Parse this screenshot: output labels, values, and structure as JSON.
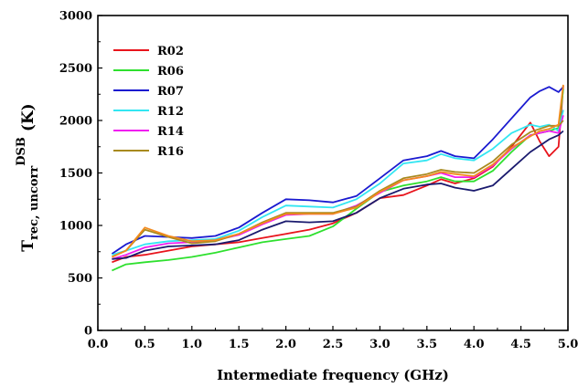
{
  "chart_data": {
    "type": "line",
    "title": "",
    "xlabel": "Intermediate frequency (GHz)",
    "ylabel": {
      "main": "T",
      "sub": "rec, uncorr",
      "sup": "DSB",
      "unit": " (K)"
    },
    "xlim": [
      0.0,
      5.0
    ],
    "ylim": [
      0,
      3000
    ],
    "xticks": [
      "0.0",
      "0.5",
      "1.0",
      "1.5",
      "2.0",
      "2.5",
      "3.0",
      "3.5",
      "4.0",
      "4.5",
      "5.0"
    ],
    "yticks": [
      "0",
      "500",
      "1000",
      "1500",
      "2000",
      "2500",
      "3000"
    ],
    "grid": false,
    "legend_position": "top-left",
    "x": [
      0.15,
      0.3,
      0.5,
      0.75,
      1.0,
      1.25,
      1.5,
      1.75,
      2.0,
      2.25,
      2.5,
      2.75,
      3.0,
      3.25,
      3.5,
      3.65,
      3.8,
      4.0,
      4.2,
      4.4,
      4.6,
      4.7,
      4.8,
      4.9,
      4.95
    ],
    "series": [
      {
        "name": "R02",
        "color": "#e8141c",
        "values": [
          650,
          700,
          720,
          760,
          800,
          820,
          840,
          880,
          920,
          960,
          1020,
          1120,
          1260,
          1290,
          1380,
          1440,
          1400,
          1450,
          1560,
          1750,
          1980,
          1800,
          1660,
          1750,
          2330
        ]
      },
      {
        "name": "R06",
        "color": "#2ee02e",
        "values": [
          570,
          630,
          650,
          670,
          700,
          740,
          790,
          840,
          870,
          900,
          990,
          1160,
          1320,
          1380,
          1420,
          1460,
          1420,
          1420,
          1520,
          1700,
          1860,
          1880,
          1900,
          1930,
          2300
        ]
      },
      {
        "name": "R07",
        "color": "#1a1ad0",
        "values": [
          730,
          820,
          900,
          890,
          880,
          900,
          980,
          1120,
          1250,
          1240,
          1220,
          1280,
          1450,
          1620,
          1660,
          1710,
          1660,
          1640,
          1820,
          2020,
          2220,
          2280,
          2320,
          2270,
          2320
        ]
      },
      {
        "name": "R12",
        "color": "#33e6f2",
        "values": [
          720,
          760,
          820,
          850,
          860,
          870,
          950,
          1080,
          1190,
          1180,
          1170,
          1250,
          1400,
          1590,
          1620,
          1680,
          1640,
          1620,
          1730,
          1880,
          1960,
          1940,
          1960,
          1900,
          2100
        ]
      },
      {
        "name": "R14",
        "color": "#f01cf0",
        "values": [
          680,
          720,
          790,
          830,
          840,
          860,
          910,
          1010,
          1100,
          1110,
          1110,
          1190,
          1310,
          1430,
          1470,
          1500,
          1460,
          1460,
          1570,
          1730,
          1860,
          1880,
          1900,
          1880,
          2050
        ]
      },
      {
        "name": "R16",
        "color": "#a88a1e",
        "values": [
          700,
          760,
          960,
          890,
          830,
          850,
          920,
          1030,
          1120,
          1120,
          1120,
          1180,
          1330,
          1450,
          1490,
          1530,
          1510,
          1500,
          1610,
          1770,
          1890,
          1920,
          1950,
          1950,
          2000
        ]
      },
      {
        "name": "",
        "color": "#1a1a6e",
        "values": [
          680,
          690,
          760,
          800,
          810,
          820,
          860,
          960,
          1040,
          1030,
          1040,
          1120,
          1260,
          1350,
          1390,
          1400,
          1360,
          1330,
          1380,
          1540,
          1700,
          1760,
          1820,
          1860,
          1900
        ]
      },
      {
        "name": "",
        "color": "#f28a1e",
        "values": [
          700,
          760,
          980,
          900,
          850,
          860,
          920,
          1020,
          1110,
          1110,
          1110,
          1170,
          1320,
          1430,
          1470,
          1510,
          1490,
          1470,
          1580,
          1740,
          1850,
          1900,
          1920,
          1960,
          2340
        ]
      }
    ]
  }
}
